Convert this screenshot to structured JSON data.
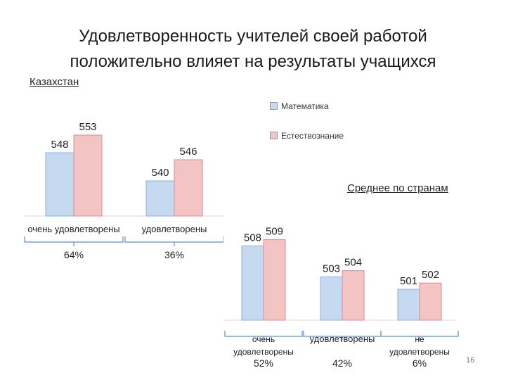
{
  "title_line1": "Удовлетворенность учителей своей работой",
  "title_line2": "положительно влияет на результаты учащихся",
  "page_number": "16",
  "legend": [
    {
      "label": "Математика",
      "color": "#c5d9f1"
    },
    {
      "label": "Естествознание",
      "color": "#f2c4c4"
    }
  ],
  "colors": {
    "math": "#c5d9f1",
    "math_edge": "#8fb0db",
    "science": "#f2c4c4",
    "science_edge": "#d98c8c",
    "bracket": "#5b8fd6"
  },
  "chart_data": [
    {
      "type": "bar",
      "title": "Казахстан",
      "categories": [
        "очень удовлетворены",
        "удовлетворены"
      ],
      "shares": [
        "64%",
        "36%"
      ],
      "series": [
        {
          "name": "Математика",
          "values": [
            548,
            540
          ]
        },
        {
          "name": "Естествознание",
          "values": [
            553,
            546
          ]
        }
      ]
    },
    {
      "type": "bar",
      "title": "Среднее по странам",
      "categories": [
        "очень удовлетворены",
        "удовлетворены",
        "не удовлетворены"
      ],
      "shares": [
        "52%",
        "42%",
        "6%"
      ],
      "series": [
        {
          "name": "Математика",
          "values": [
            508,
            503,
            501
          ]
        },
        {
          "name": "Естествознание",
          "values": [
            509,
            504,
            502
          ]
        }
      ]
    }
  ]
}
